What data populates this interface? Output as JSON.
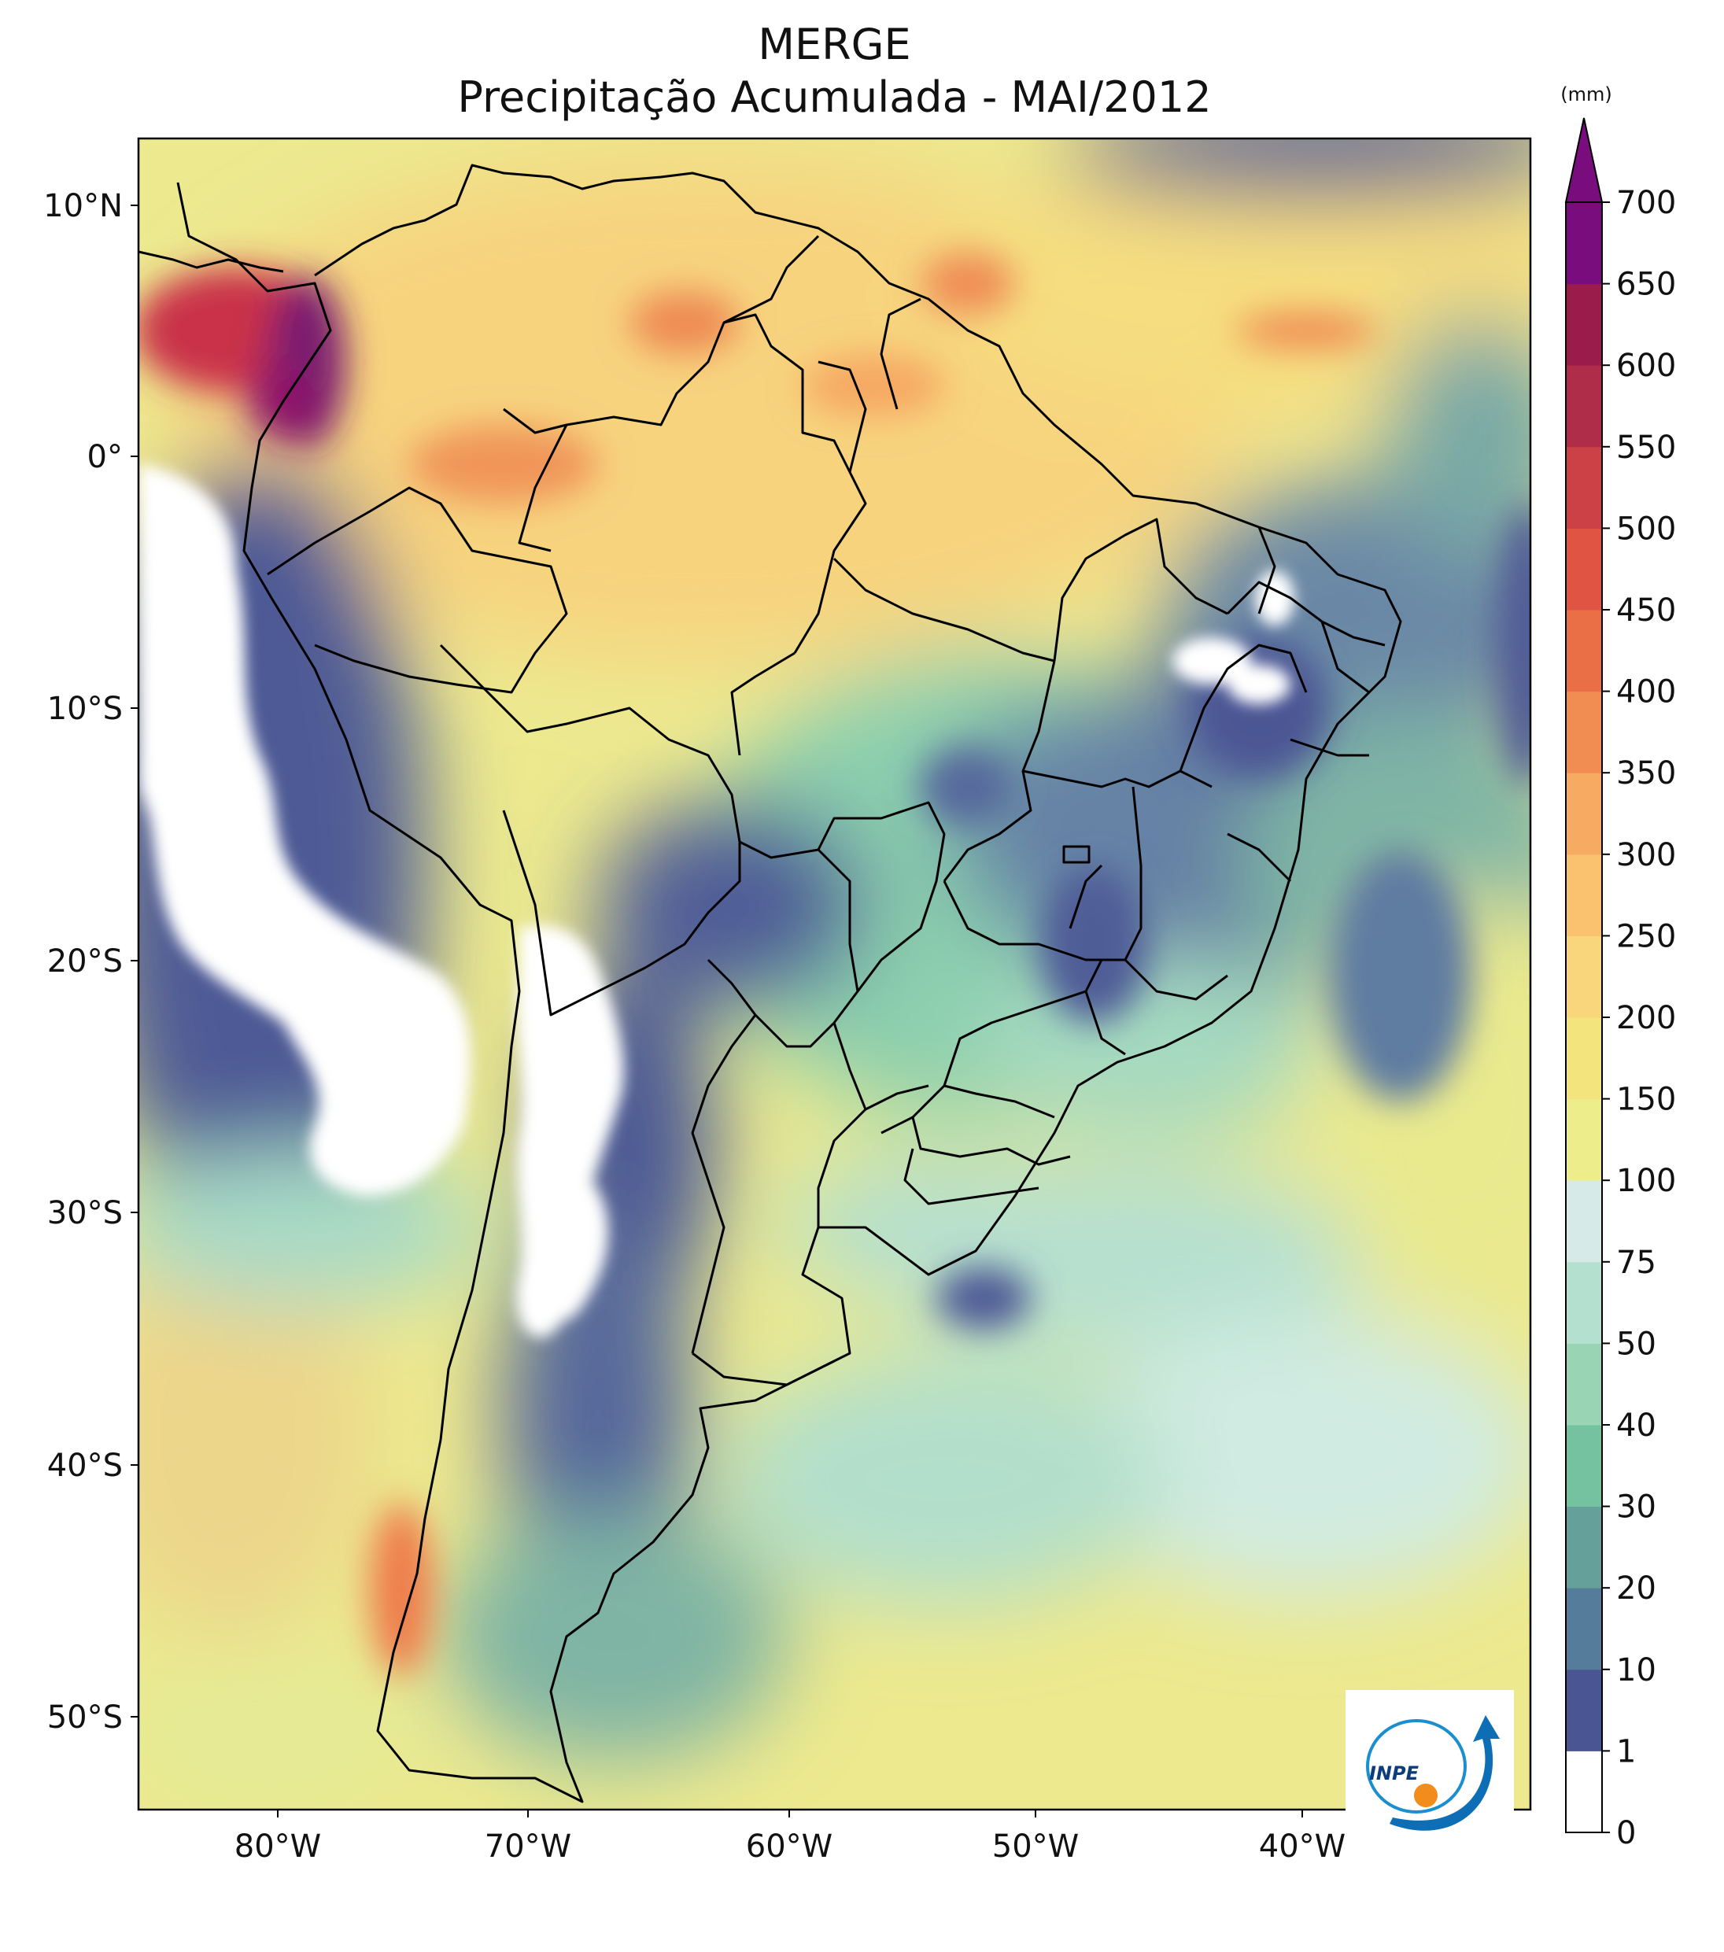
{
  "title": {
    "line1": "MERGE",
    "line2": "Precipitação Acumulada - MAI/2012"
  },
  "map": {
    "region": "South America",
    "lat_labels": [
      "10°N",
      "0°",
      "10°S",
      "20°S",
      "30°S",
      "40°S",
      "50°S"
    ],
    "lon_labels": [
      "80°W",
      "70°W",
      "60°W",
      "50°W",
      "40°W"
    ]
  },
  "colorbar": {
    "unit": "(mm)",
    "levels": [
      "0",
      "1",
      "10",
      "20",
      "30",
      "40",
      "50",
      "75",
      "100",
      "150",
      "200",
      "250",
      "300",
      "350",
      "400",
      "450",
      "500",
      "550",
      "600",
      "650",
      "700"
    ],
    "colors": [
      "#ffffff",
      "#4a5594",
      "#557c9b",
      "#66a09a",
      "#74c2a0",
      "#99d4b4",
      "#b4e0d0",
      "#d6ebe8",
      "#eded8c",
      "#f4e47e",
      "#f9d57c",
      "#fac26e",
      "#f6aa62",
      "#f18c52",
      "#ea6f47",
      "#df5442",
      "#cc4145",
      "#b02d4a",
      "#9a1c4b",
      "#7a0d7e"
    ]
  },
  "logo": {
    "text": "INPE"
  }
}
